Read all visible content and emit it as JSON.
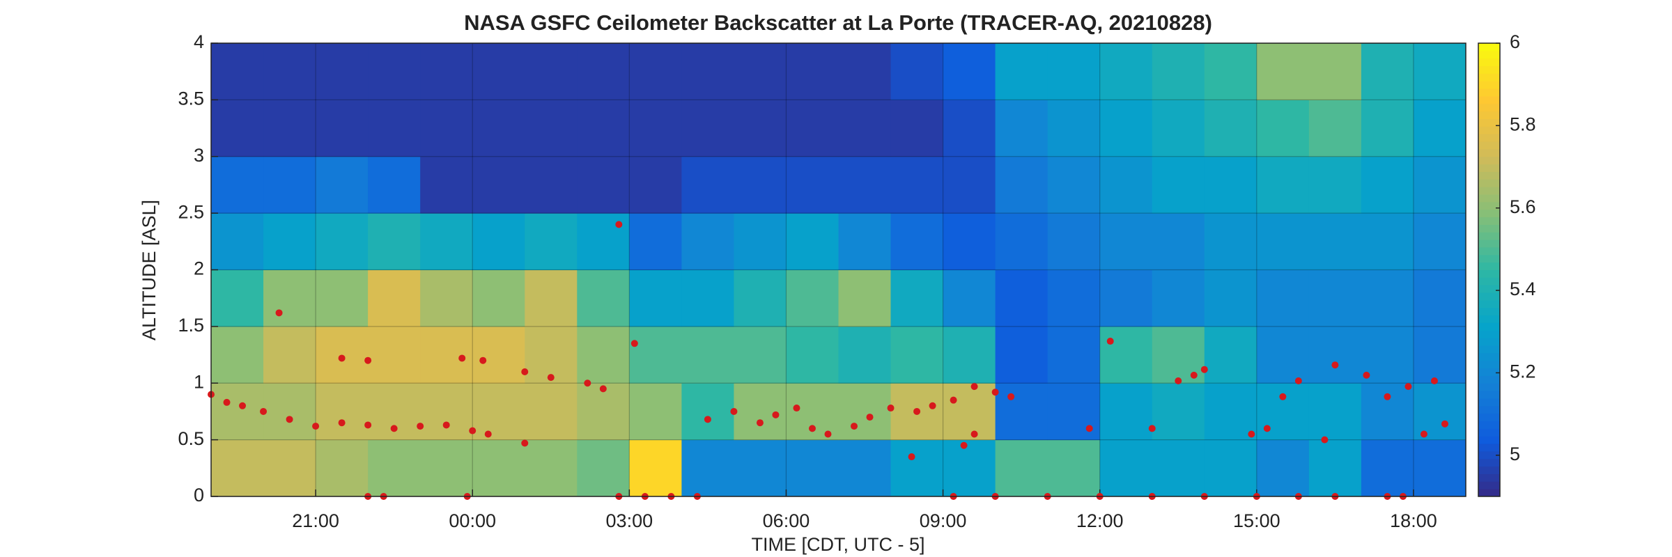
{
  "chart_data": {
    "type": "heatmap",
    "title": "NASA GSFC Ceilometer Backscatter at La Porte (TRACER-AQ, 20210828)",
    "x_label": "TIME [CDT, UTC - 5]",
    "y_label": "ALTITUDE [ASL]",
    "colormap": "parula",
    "grid": true,
    "xlim": [
      19,
      43
    ],
    "xticks": [
      {
        "value": 21,
        "label": "21:00"
      },
      {
        "value": 24,
        "label": "00:00"
      },
      {
        "value": 27,
        "label": "03:00"
      },
      {
        "value": 30,
        "label": "06:00"
      },
      {
        "value": 33,
        "label": "09:00"
      },
      {
        "value": 36,
        "label": "12:00"
      },
      {
        "value": 39,
        "label": "15:00"
      },
      {
        "value": 42,
        "label": "18:00"
      }
    ],
    "ylim": [
      0,
      4
    ],
    "yticks": [
      0,
      0.5,
      1,
      1.5,
      2,
      2.5,
      3,
      3.5,
      4
    ],
    "clim": [
      4.9,
      6
    ],
    "cticks": [
      5,
      5.2,
      5.4,
      5.6,
      5.8,
      6
    ],
    "x": [
      19.5,
      20.5,
      21.5,
      22.5,
      23.5,
      24.5,
      25.5,
      26.5,
      27.5,
      28.5,
      29.5,
      30.5,
      31.5,
      32.5,
      33.5,
      34.5,
      35.5,
      36.5,
      37.5,
      38.5,
      39.5,
      40.5,
      41.5,
      42.5
    ],
    "y": [
      0.25,
      0.75,
      1.25,
      1.75,
      2.25,
      2.75,
      3.25,
      3.75
    ],
    "z": [
      [
        5.7,
        5.7,
        5.65,
        5.6,
        5.6,
        5.6,
        5.6,
        5.55,
        5.9,
        5.2,
        5.2,
        5.2,
        5.2,
        5.3,
        5.3,
        5.5,
        5.5,
        5.3,
        5.3,
        5.3,
        5.2,
        5.3,
        5.1,
        5.1
      ],
      [
        5.65,
        5.65,
        5.7,
        5.7,
        5.7,
        5.7,
        5.7,
        5.65,
        5.6,
        5.45,
        5.6,
        5.6,
        5.6,
        5.7,
        5.7,
        5.1,
        5.1,
        5.3,
        5.35,
        5.3,
        5.3,
        5.3,
        5.2,
        5.25
      ],
      [
        5.6,
        5.7,
        5.75,
        5.75,
        5.75,
        5.75,
        5.7,
        5.6,
        5.5,
        5.5,
        5.5,
        5.45,
        5.4,
        5.45,
        5.4,
        5.05,
        5.1,
        5.45,
        5.5,
        5.35,
        5.2,
        5.2,
        5.2,
        5.15
      ],
      [
        5.45,
        5.6,
        5.6,
        5.75,
        5.65,
        5.6,
        5.7,
        5.5,
        5.3,
        5.3,
        5.4,
        5.5,
        5.6,
        5.35,
        5.2,
        5.05,
        5.1,
        5.15,
        5.2,
        5.25,
        5.2,
        5.2,
        5.2,
        5.15
      ],
      [
        5.25,
        5.3,
        5.35,
        5.4,
        5.35,
        5.3,
        5.35,
        5.3,
        5.1,
        5.2,
        5.25,
        5.3,
        5.2,
        5.1,
        5.05,
        5.1,
        5.15,
        5.2,
        5.2,
        5.25,
        5.25,
        5.25,
        5.25,
        5.2
      ],
      [
        5.1,
        5.1,
        5.15,
        5.1,
        4.95,
        4.95,
        4.95,
        4.95,
        4.95,
        5.0,
        5.0,
        5.0,
        5.0,
        5.0,
        5.0,
        5.15,
        5.2,
        5.25,
        5.3,
        5.3,
        5.35,
        5.35,
        5.3,
        5.25
      ],
      [
        4.95,
        4.95,
        4.95,
        4.95,
        4.95,
        4.95,
        4.95,
        4.95,
        4.95,
        4.95,
        4.95,
        4.95,
        4.95,
        4.95,
        5.0,
        5.2,
        5.25,
        5.3,
        5.35,
        5.4,
        5.45,
        5.5,
        5.4,
        5.3
      ],
      [
        4.95,
        4.95,
        4.95,
        4.95,
        4.95,
        4.95,
        4.95,
        4.95,
        4.95,
        4.95,
        4.95,
        4.95,
        4.95,
        5.0,
        5.05,
        5.3,
        5.3,
        5.35,
        5.4,
        5.45,
        5.6,
        5.6,
        5.4,
        5.35
      ]
    ],
    "series": [
      {
        "color": "#d7191c",
        "x": [
          19.0,
          19.3,
          19.6,
          20.0,
          20.5,
          21.0,
          21.5,
          22.0,
          22.5,
          23.0,
          23.5,
          24.0,
          24.3,
          25.0,
          20.3,
          21.5,
          22.0,
          23.8,
          24.2,
          25.0,
          25.5,
          26.2,
          26.5,
          26.8,
          27.1,
          22.0,
          22.3,
          23.9,
          26.8,
          27.3,
          27.8,
          28.3,
          28.5,
          29.0,
          29.5,
          29.8,
          30.2,
          30.5,
          30.8,
          31.3,
          31.6,
          32.0,
          32.5,
          32.8,
          33.2,
          33.6,
          34.0,
          34.3,
          32.4,
          33.4,
          33.6,
          33.2,
          34.0,
          35.0,
          36.0,
          37.0,
          38.0,
          39.0,
          39.8,
          40.5,
          41.5,
          41.8,
          35.8,
          36.2,
          37.0,
          37.5,
          37.8,
          38.0,
          38.9,
          39.2,
          39.5,
          39.8,
          40.3,
          40.5,
          41.1,
          41.5,
          41.9,
          42.4,
          42.2,
          42.6
        ],
        "values": [
          0.9,
          0.83,
          0.8,
          0.75,
          0.68,
          0.62,
          0.65,
          0.63,
          0.6,
          0.62,
          0.63,
          0.58,
          0.55,
          0.47,
          1.62,
          1.22,
          1.2,
          1.22,
          1.2,
          1.1,
          1.05,
          1.0,
          0.95,
          2.4,
          1.35,
          0,
          0,
          0,
          0,
          0,
          0,
          0,
          0.68,
          0.75,
          0.65,
          0.72,
          0.78,
          0.6,
          0.55,
          0.62,
          0.7,
          0.78,
          0.75,
          0.8,
          0.85,
          0.97,
          0.92,
          0.88,
          0.35,
          0.45,
          0.55,
          0,
          0,
          0,
          0,
          0,
          0,
          0,
          0,
          0,
          0,
          0,
          0.6,
          1.37,
          0.6,
          1.02,
          1.07,
          1.12,
          0.55,
          0.6,
          0.88,
          1.02,
          0.5,
          1.16,
          1.07,
          0.88,
          0.97,
          1.02,
          0.55,
          0.64
        ]
      }
    ]
  }
}
